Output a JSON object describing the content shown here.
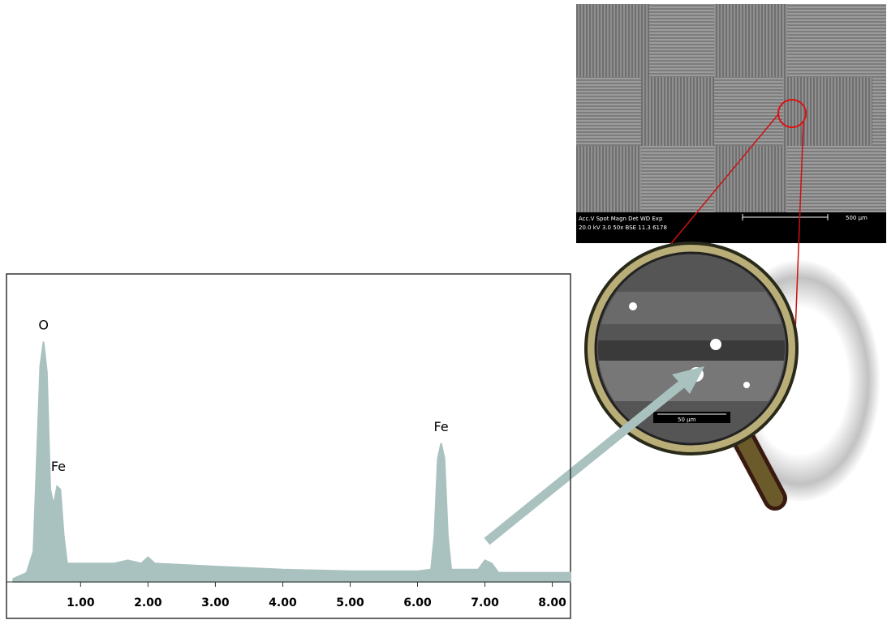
{
  "chart_data": {
    "type": "area",
    "x": [
      0.0,
      0.2,
      0.3,
      0.35,
      0.4,
      0.45,
      0.5,
      0.55,
      0.6,
      0.65,
      0.7,
      0.75,
      0.8,
      1.0,
      1.5,
      1.7,
      1.9,
      2.0,
      2.1,
      3.0,
      4.0,
      5.0,
      6.0,
      6.2,
      6.25,
      6.3,
      6.35,
      6.4,
      6.45,
      6.5,
      6.9,
      7.0,
      7.1,
      7.2,
      8.0,
      8.27
    ],
    "values": [
      1,
      3,
      10,
      40,
      70,
      78,
      68,
      30,
      25,
      31,
      30,
      15,
      6,
      6,
      6,
      7,
      6,
      8,
      6,
      5,
      4,
      3.5,
      3.5,
      4,
      15,
      40,
      45,
      40,
      15,
      4,
      4,
      7,
      6,
      3,
      3,
      3
    ],
    "color": "#a9c2c0",
    "xlim": [
      -0.1,
      8.27
    ],
    "ylim": [
      0,
      100
    ],
    "xticks": [
      {
        "value": 1,
        "label": "1.00"
      },
      {
        "value": 2,
        "label": "2.00"
      },
      {
        "value": 3,
        "label": "3.00"
      },
      {
        "value": 4,
        "label": "4.00"
      },
      {
        "value": 5,
        "label": "5.00"
      },
      {
        "value": 6,
        "label": "6.00"
      },
      {
        "value": 7,
        "label": "7.00"
      },
      {
        "value": 8,
        "label": "8.00"
      }
    ],
    "annotations": [
      {
        "text": "O",
        "x": 0.45,
        "y": 82
      },
      {
        "text": "Fe",
        "x": 0.67,
        "y": 36
      },
      {
        "text": "Fe",
        "x": 6.35,
        "y": 49
      }
    ]
  },
  "sem_image": {
    "info_line_1": "Acc.V  Spot Magn    Det  WD  Exp",
    "info_line_2": "20.0 kV 3.0  50x     BSE 11.3 6178",
    "scale_bar": "500 µm"
  },
  "magnified_image": {
    "scale_bar": "50 µm"
  }
}
